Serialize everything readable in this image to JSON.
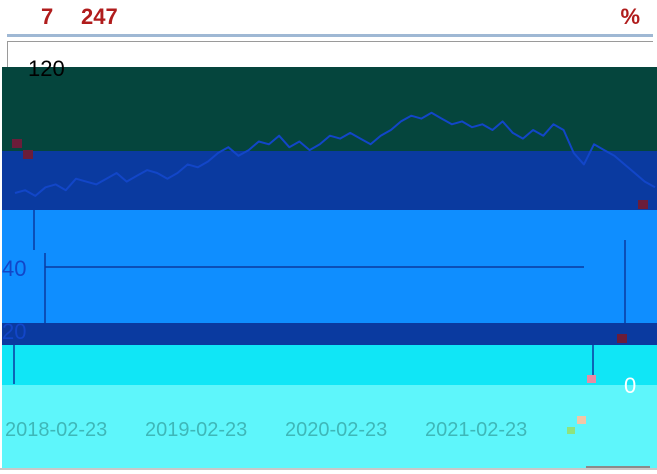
{
  "header": {
    "stat_a": "7",
    "stat_b": "247",
    "stat_right": "%"
  },
  "colors": {
    "band_top": "#05453d",
    "band_navy": "#0a3aa0",
    "band_blue": "#0f8eff",
    "band_cyan": "#10e6f6",
    "band_pale": "#5ef6fb",
    "line": "#1246c8",
    "accent_red": "#b01c1c"
  },
  "chart_data": {
    "type": "line",
    "title": "",
    "xlabel": "",
    "ylabel": "",
    "y_ticks": [
      "120",
      "40",
      "20",
      "0"
    ],
    "x_ticks": [
      "2018-02-23",
      "2019-02-23",
      "2020-02-23",
      "2021-02-23"
    ],
    "grid": false,
    "series": [
      {
        "name": "",
        "values": [
          96,
          97,
          95,
          98,
          99,
          97,
          101,
          100,
          99,
          101,
          103,
          100,
          102,
          104,
          103,
          101,
          103,
          106,
          105,
          107,
          110,
          112,
          109,
          111,
          114,
          113,
          116,
          112,
          114,
          111,
          113,
          116,
          115,
          117,
          115,
          113,
          116,
          118,
          121,
          123,
          122,
          124,
          122,
          120,
          121,
          119,
          120,
          118,
          121,
          117,
          115,
          118,
          116,
          120,
          118,
          110,
          106,
          113,
          111,
          109,
          106,
          103,
          100,
          98
        ]
      }
    ],
    "ylim": [
      0,
      140
    ]
  }
}
